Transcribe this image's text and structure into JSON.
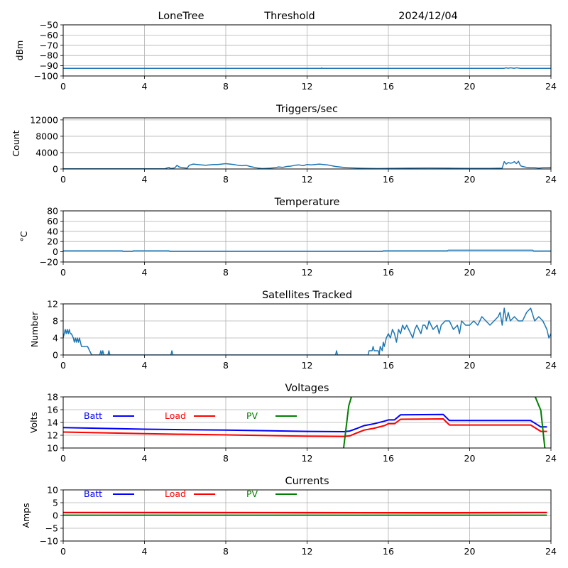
{
  "header": {
    "site": "LoneTree",
    "mode": "Threshold",
    "date": "2024/12/04"
  },
  "chart_data": [
    {
      "type": "line",
      "title": "",
      "xlabel": "",
      "ylabel": "dBm",
      "xlim": [
        0,
        24
      ],
      "ylim": [
        -100,
        -50
      ],
      "xticks": [
        "0",
        "4",
        "8",
        "12",
        "16",
        "20",
        "24"
      ],
      "yticks": [
        "-100",
        "-90",
        "-80",
        "-70",
        "-60",
        "-50"
      ],
      "grid": true,
      "series": [
        {
          "name": "Threshold",
          "color": "#1f77b4",
          "x": [
            0,
            12.7,
            12.72,
            12.74,
            21.7,
            21.8,
            21.9,
            22.0,
            22.2,
            22.3,
            22.5,
            24
          ],
          "y": [
            -92.5,
            -92.5,
            -92,
            -92.5,
            -92.5,
            -92,
            -92.5,
            -92,
            -92.5,
            -92,
            -92.5,
            -92.5
          ]
        }
      ]
    },
    {
      "type": "line",
      "title": "Triggers/sec",
      "xlabel": "",
      "ylabel": "Count",
      "xlim": [
        0,
        24
      ],
      "ylim": [
        0,
        12500
      ],
      "xticks": [
        "0",
        "4",
        "8",
        "12",
        "16",
        "20",
        "24"
      ],
      "yticks": [
        "0",
        "4000",
        "8000",
        "12000"
      ],
      "grid": true,
      "series": [
        {
          "name": "Triggers",
          "color": "#1f77b4",
          "x": [
            0,
            5.0,
            5.2,
            5.3,
            5.5,
            5.6,
            5.7,
            5.9,
            6.1,
            6.2,
            6.4,
            6.6,
            6.8,
            7.0,
            7.2,
            7.4,
            7.6,
            7.8,
            8.0,
            8.2,
            8.4,
            8.6,
            8.8,
            9.0,
            9.2,
            9.4,
            9.6,
            9.8,
            10.0,
            10.2,
            10.4,
            10.6,
            10.8,
            11.0,
            11.2,
            11.4,
            11.6,
            11.8,
            12.0,
            12.2,
            12.4,
            12.6,
            12.8,
            13.0,
            13.2,
            13.4,
            13.6,
            13.8,
            14.0,
            14.5,
            15.0,
            15.5,
            16.0,
            17.0,
            18.0,
            19.0,
            20.0,
            21.0,
            21.6,
            21.7,
            21.8,
            21.9,
            22.0,
            22.1,
            22.2,
            22.3,
            22.4,
            22.5,
            22.6,
            22.8,
            23.0,
            23.2,
            23.4,
            23.6,
            23.8,
            24
          ],
          "y": [
            50,
            50,
            400,
            100,
            300,
            900,
            500,
            300,
            200,
            900,
            1200,
            1100,
            1000,
            900,
            1000,
            1100,
            1100,
            1200,
            1300,
            1200,
            1100,
            900,
            800,
            900,
            600,
            400,
            200,
            100,
            150,
            200,
            300,
            500,
            400,
            600,
            700,
            900,
            1000,
            800,
            1100,
            1000,
            1100,
            1200,
            1100,
            1000,
            800,
            600,
            500,
            400,
            300,
            200,
            150,
            100,
            150,
            200,
            250,
            200,
            150,
            150,
            200,
            1800,
            1200,
            1600,
            1400,
            1500,
            1800,
            1300,
            1900,
            800,
            600,
            400,
            300,
            300,
            200,
            300,
            300,
            400
          ]
        }
      ]
    },
    {
      "type": "line",
      "title": "Temperature",
      "xlabel": "",
      "ylabel": "°C",
      "xlim": [
        0,
        24
      ],
      "ylim": [
        -20,
        80
      ],
      "xticks": [
        "0",
        "4",
        "8",
        "12",
        "16",
        "20",
        "24"
      ],
      "yticks": [
        "-20",
        "0",
        "20",
        "40",
        "60",
        "80"
      ],
      "grid": true,
      "series": [
        {
          "name": "Temperature",
          "color": "#1f77b4",
          "x": [
            0,
            2.9,
            2.95,
            3.4,
            3.45,
            5.2,
            5.25,
            15.7,
            15.75,
            18.9,
            18.95,
            23.1,
            23.15,
            24
          ],
          "y": [
            2,
            2,
            1,
            1,
            2,
            2,
            1,
            1,
            2,
            2,
            3,
            3,
            1.5,
            1.5
          ]
        }
      ]
    },
    {
      "type": "line",
      "title": "Satellites Tracked",
      "xlabel": "",
      "ylabel": "Number",
      "xlim": [
        0,
        24
      ],
      "ylim": [
        0,
        12
      ],
      "xticks": [
        "0",
        "4",
        "8",
        "12",
        "16",
        "20",
        "24"
      ],
      "yticks": [
        "0",
        "4",
        "8",
        "12"
      ],
      "grid": true,
      "series": [
        {
          "name": "Satellites",
          "color": "#1f77b4",
          "x": [
            0,
            0.1,
            0.15,
            0.2,
            0.25,
            0.3,
            0.35,
            0.4,
            0.5,
            0.55,
            0.6,
            0.65,
            0.7,
            0.75,
            0.8,
            0.85,
            0.9,
            1.0,
            1.2,
            1.3,
            1.4,
            1.8,
            1.85,
            1.9,
            1.95,
            2.0,
            2.2,
            2.25,
            2.3,
            5.3,
            5.35,
            5.4,
            13.4,
            13.45,
            13.5,
            15.0,
            15.05,
            15.2,
            15.25,
            15.3,
            15.5,
            15.55,
            15.6,
            15.7,
            15.75,
            15.8,
            15.9,
            16.0,
            16.1,
            16.2,
            16.3,
            16.4,
            16.5,
            16.6,
            16.7,
            16.8,
            16.9,
            17.0,
            17.1,
            17.2,
            17.3,
            17.4,
            17.5,
            17.6,
            17.7,
            17.8,
            17.9,
            18.0,
            18.2,
            18.4,
            18.5,
            18.6,
            18.8,
            19.0,
            19.2,
            19.4,
            19.5,
            19.6,
            19.8,
            20.0,
            20.2,
            20.4,
            20.6,
            20.8,
            21.0,
            21.2,
            21.4,
            21.5,
            21.6,
            21.7,
            21.8,
            21.9,
            22.0,
            22.2,
            22.4,
            22.6,
            22.8,
            23.0,
            23.2,
            23.4,
            23.6,
            23.8,
            23.9,
            24
          ],
          "y": [
            4,
            6,
            5,
            6,
            5,
            6,
            5,
            5,
            4,
            3,
            4,
            3,
            4,
            3,
            4,
            3,
            2,
            2,
            2,
            1,
            0,
            0,
            1,
            0,
            1,
            0,
            0,
            1,
            0,
            0,
            1,
            0,
            0,
            1,
            0,
            0,
            1,
            1,
            2,
            1,
            1,
            0,
            2,
            1,
            3,
            2,
            4,
            5,
            4,
            6,
            5,
            3,
            6,
            5,
            7,
            6,
            7,
            6,
            5,
            4,
            6,
            7,
            6,
            5,
            7,
            7,
            6,
            8,
            6,
            7,
            5,
            7,
            8,
            8,
            6,
            7,
            5,
            8,
            7,
            7,
            8,
            7,
            9,
            8,
            7,
            8,
            9,
            10,
            7,
            11,
            8,
            10,
            8,
            9,
            8,
            8,
            10,
            11,
            8,
            9,
            8,
            6,
            4,
            5
          ]
        }
      ]
    },
    {
      "type": "line",
      "title": "Voltages",
      "xlabel": "",
      "ylabel": "Volts",
      "xlim": [
        0,
        24
      ],
      "ylim": [
        10,
        18
      ],
      "xticks": [
        "0",
        "4",
        "8",
        "12",
        "16",
        "20",
        "24"
      ],
      "yticks": [
        "10",
        "12",
        "14",
        "16",
        "18"
      ],
      "grid": true,
      "legend": {
        "placement": "top-left-inline",
        "entries": [
          "Batt",
          "Load",
          "PV"
        ]
      },
      "series": [
        {
          "name": "Batt",
          "color": "#0000ff",
          "x": [
            0,
            4,
            8,
            12,
            13.8,
            14.1,
            14.4,
            14.8,
            15.3,
            15.8,
            16.0,
            16.3,
            16.6,
            18.7,
            19.0,
            23.0,
            23.5,
            23.8
          ],
          "y": [
            13.2,
            12.95,
            12.8,
            12.6,
            12.55,
            12.65,
            13.0,
            13.5,
            13.8,
            14.2,
            14.4,
            14.4,
            15.2,
            15.25,
            14.3,
            14.3,
            13.3,
            13.3
          ]
        },
        {
          "name": "Load",
          "color": "#ff0000",
          "x": [
            0,
            4,
            8,
            12,
            13.8,
            14.1,
            14.4,
            14.8,
            15.3,
            15.8,
            16.0,
            16.3,
            16.6,
            18.7,
            19.0,
            23.0,
            23.5,
            23.8
          ],
          "y": [
            12.5,
            12.25,
            12.05,
            11.85,
            11.8,
            11.9,
            12.3,
            12.8,
            13.1,
            13.5,
            13.8,
            13.8,
            14.5,
            14.55,
            13.6,
            13.6,
            12.6,
            12.6
          ]
        },
        {
          "name": "PV",
          "color": "#008000",
          "x": [
            13.8,
            14.05,
            14.2,
            23.2,
            23.5,
            23.7
          ],
          "y": [
            10,
            16.6,
            18.2,
            18.2,
            15.9,
            10
          ]
        }
      ]
    },
    {
      "type": "line",
      "title": "Currents",
      "xlabel": "",
      "ylabel": "Amps",
      "xlim": [
        0,
        24
      ],
      "ylim": [
        -10,
        10
      ],
      "xticks": [
        "0",
        "4",
        "8",
        "12",
        "16",
        "20",
        "24"
      ],
      "yticks": [
        "-10",
        "-5",
        "0",
        "5",
        "10"
      ],
      "grid": true,
      "legend": {
        "placement": "top-left-inline",
        "entries": [
          "Batt",
          "Load",
          "PV"
        ]
      },
      "series": [
        {
          "name": "Batt",
          "color": "#0000ff",
          "x": [
            0,
            12,
            18,
            23.8
          ],
          "y": [
            1.1,
            1.05,
            1.0,
            1.1
          ]
        },
        {
          "name": "Load",
          "color": "#ff0000",
          "x": [
            0,
            12,
            18,
            23.8
          ],
          "y": [
            1.2,
            1.15,
            1.1,
            1.2
          ]
        },
        {
          "name": "PV",
          "color": "#008000",
          "x": [
            0,
            23.8
          ],
          "y": [
            0.1,
            0.1
          ]
        }
      ]
    }
  ]
}
